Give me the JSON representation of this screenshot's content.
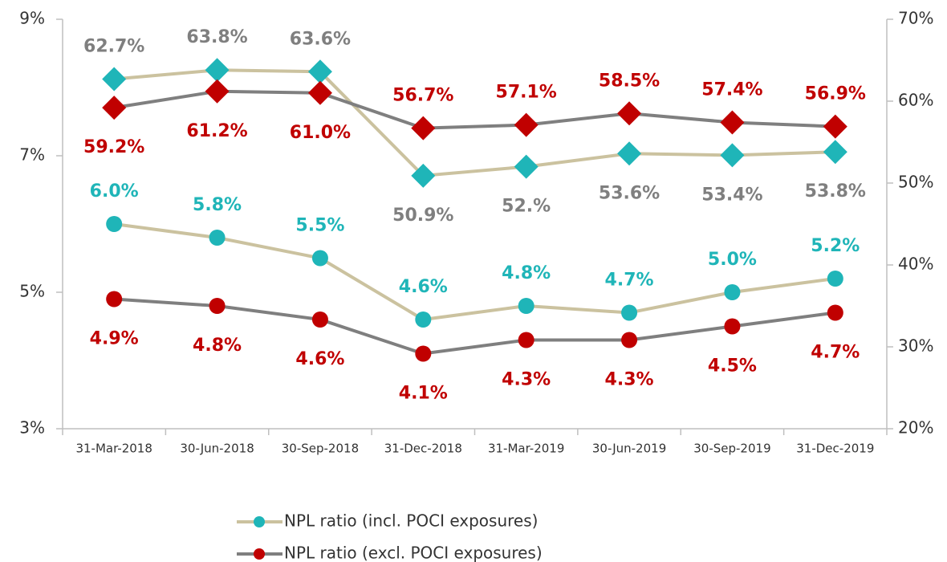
{
  "chart_data": {
    "type": "line",
    "categories": [
      "31-Mar-2018",
      "30-Jun-2018",
      "30-Sep-2018",
      "31-Dec-2018",
      "31-Mar-2019",
      "30-Jun-2019",
      "30-Sep-2019",
      "31-Dec-2019"
    ],
    "ylim": [
      3,
      9
    ],
    "yticks": [
      {
        "value": 3,
        "label": "3%"
      },
      {
        "value": 5,
        "label": "5%"
      },
      {
        "value": 7,
        "label": "7%"
      },
      {
        "value": 9,
        "label": "9%"
      }
    ],
    "y2lim": [
      20,
      70
    ],
    "y2ticks": [
      {
        "value": 20,
        "label": "20%"
      },
      {
        "value": 30,
        "label": "30%"
      },
      {
        "value": 40,
        "label": "40%"
      },
      {
        "value": 50,
        "label": "50%"
      },
      {
        "value": 60,
        "label": "60%"
      },
      {
        "value": 70,
        "label": "70%"
      }
    ],
    "series": [
      {
        "name": "NPL ratio (incl. POCI exposures)",
        "color": "#1fb5b8",
        "line_color": "#cbc29f",
        "label_color": "#1fb5b8",
        "marker": "circle",
        "values": [
          6.0,
          5.8,
          5.5,
          4.6,
          4.8,
          4.7,
          5.0,
          5.2
        ],
        "value_labels": [
          "6.0%",
          "5.8%",
          "5.5%",
          "4.6%",
          "4.8%",
          "4.7%",
          "5.0%",
          "5.2%"
        ]
      },
      {
        "name": "NPL ratio (excl. POCI exposures)",
        "color": "#c00000",
        "line_color": "#7f7f7f",
        "label_color": "#c00000",
        "marker": "circle",
        "values": [
          4.9,
          4.8,
          4.6,
          4.1,
          4.3,
          4.3,
          4.5,
          4.7
        ],
        "value_labels": [
          "4.9%",
          "4.8%",
          "4.6%",
          "4.1%",
          "4.3%",
          "4.3%",
          "4.5%",
          "4.7%"
        ]
      },
      {
        "axis": "y2",
        "color": "#1fb5b8",
        "line_color": "#cbc29f",
        "label_color": "#7f7f7f",
        "marker": "diamond",
        "values": [
          62.7,
          63.8,
          63.6,
          50.9,
          52,
          53.6,
          53.4,
          53.8
        ],
        "value_labels": [
          "62.7%",
          "63.8%",
          "63.6%",
          "50.9%",
          "52.%",
          "53.6%",
          "53.4%",
          "53.8%"
        ]
      },
      {
        "axis": "y2",
        "color": "#c00000",
        "line_color": "#7f7f7f",
        "label_color": "#c00000",
        "marker": "diamond",
        "values": [
          59.2,
          61.2,
          61.0,
          56.7,
          57.1,
          58.5,
          57.4,
          56.9
        ],
        "value_labels": [
          "59.2%",
          "61.2%",
          "61.0%",
          "56.7%",
          "57.1%",
          "58.5%",
          "57.4%",
          "56.9%"
        ]
      }
    ]
  }
}
